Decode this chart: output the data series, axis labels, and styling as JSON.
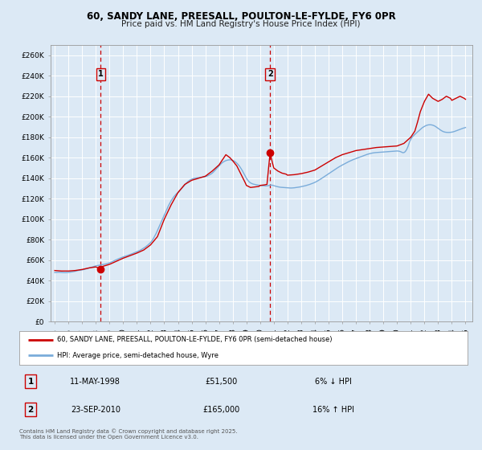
{
  "title_line1": "60, SANDY LANE, PREESALL, POULTON-LE-FYLDE, FY6 0PR",
  "title_line2": "Price paid vs. HM Land Registry's House Price Index (HPI)",
  "background_color": "#dce9f5",
  "plot_bg_color": "#dce9f5",
  "grid_color": "#ffffff",
  "ylim": [
    0,
    270000
  ],
  "yticks": [
    0,
    20000,
    40000,
    60000,
    80000,
    100000,
    120000,
    140000,
    160000,
    180000,
    200000,
    220000,
    240000,
    260000
  ],
  "xlim_start": 1994.7,
  "xlim_end": 2025.5,
  "xtick_years": [
    1995,
    1996,
    1997,
    1998,
    1999,
    2000,
    2001,
    2002,
    2003,
    2004,
    2005,
    2006,
    2007,
    2008,
    2009,
    2010,
    2011,
    2012,
    2013,
    2014,
    2015,
    2016,
    2017,
    2018,
    2019,
    2020,
    2021,
    2022,
    2023,
    2024,
    2025
  ],
  "property_color": "#cc0000",
  "hpi_color": "#7aacda",
  "sale1_x": 1998.36,
  "sale1_y": 51500,
  "sale1_label": "1",
  "sale1_date": "11-MAY-1998",
  "sale1_price": "£51,500",
  "sale1_hpi": "6% ↓ HPI",
  "sale2_x": 2010.73,
  "sale2_y": 165000,
  "sale2_label": "2",
  "sale2_date": "23-SEP-2010",
  "sale2_price": "£165,000",
  "sale2_hpi": "16% ↑ HPI",
  "vline_color": "#cc0000",
  "legend_label_property": "60, SANDY LANE, PREESALL, POULTON-LE-FYLDE, FY6 0PR (semi-detached house)",
  "legend_label_hpi": "HPI: Average price, semi-detached house, Wyre",
  "footer_text": "Contains HM Land Registry data © Crown copyright and database right 2025.\nThis data is licensed under the Open Government Licence v3.0.",
  "hpi_data_years": [
    1995.0,
    1995.1,
    1995.2,
    1995.3,
    1995.4,
    1995.5,
    1995.6,
    1995.7,
    1995.8,
    1995.9,
    1996.0,
    1996.1,
    1996.2,
    1996.3,
    1996.4,
    1996.5,
    1996.6,
    1996.7,
    1996.8,
    1996.9,
    1997.0,
    1997.1,
    1997.2,
    1997.3,
    1997.4,
    1997.5,
    1997.6,
    1997.7,
    1997.8,
    1997.9,
    1998.0,
    1998.1,
    1998.2,
    1998.3,
    1998.4,
    1998.5,
    1998.6,
    1998.7,
    1998.8,
    1998.9,
    1999.0,
    1999.1,
    1999.2,
    1999.3,
    1999.4,
    1999.5,
    1999.6,
    1999.7,
    1999.8,
    1999.9,
    2000.0,
    2000.1,
    2000.2,
    2000.3,
    2000.4,
    2000.5,
    2000.6,
    2000.7,
    2000.8,
    2000.9,
    2001.0,
    2001.1,
    2001.2,
    2001.3,
    2001.4,
    2001.5,
    2001.6,
    2001.7,
    2001.8,
    2001.9,
    2002.0,
    2002.1,
    2002.2,
    2002.3,
    2002.4,
    2002.5,
    2002.6,
    2002.7,
    2002.8,
    2002.9,
    2003.0,
    2003.1,
    2003.2,
    2003.3,
    2003.4,
    2003.5,
    2003.6,
    2003.7,
    2003.8,
    2003.9,
    2004.0,
    2004.1,
    2004.2,
    2004.3,
    2004.4,
    2004.5,
    2004.6,
    2004.7,
    2004.8,
    2004.9,
    2005.0,
    2005.1,
    2005.2,
    2005.3,
    2005.4,
    2005.5,
    2005.6,
    2005.7,
    2005.8,
    2005.9,
    2006.0,
    2006.1,
    2006.2,
    2006.3,
    2006.4,
    2006.5,
    2006.6,
    2006.7,
    2006.8,
    2006.9,
    2007.0,
    2007.1,
    2007.2,
    2007.3,
    2007.4,
    2007.5,
    2007.6,
    2007.7,
    2007.8,
    2007.9,
    2008.0,
    2008.1,
    2008.2,
    2008.3,
    2008.4,
    2008.5,
    2008.6,
    2008.7,
    2008.8,
    2008.9,
    2009.0,
    2009.1,
    2009.2,
    2009.3,
    2009.4,
    2009.5,
    2009.6,
    2009.7,
    2009.8,
    2009.9,
    2010.0,
    2010.1,
    2010.2,
    2010.3,
    2010.4,
    2010.5,
    2010.6,
    2010.7,
    2010.8,
    2010.9,
    2011.0,
    2011.1,
    2011.2,
    2011.3,
    2011.4,
    2011.5,
    2011.6,
    2011.7,
    2011.8,
    2011.9,
    2012.0,
    2012.1,
    2012.2,
    2012.3,
    2012.4,
    2012.5,
    2012.6,
    2012.7,
    2012.8,
    2012.9,
    2013.0,
    2013.1,
    2013.2,
    2013.3,
    2013.4,
    2013.5,
    2013.6,
    2013.7,
    2013.8,
    2013.9,
    2014.0,
    2014.1,
    2014.2,
    2014.3,
    2014.4,
    2014.5,
    2014.6,
    2014.7,
    2014.8,
    2014.9,
    2015.0,
    2015.1,
    2015.2,
    2015.3,
    2015.4,
    2015.5,
    2015.6,
    2015.7,
    2015.8,
    2015.9,
    2016.0,
    2016.1,
    2016.2,
    2016.3,
    2016.4,
    2016.5,
    2016.6,
    2016.7,
    2016.8,
    2016.9,
    2017.0,
    2017.1,
    2017.2,
    2017.3,
    2017.4,
    2017.5,
    2017.6,
    2017.7,
    2017.8,
    2017.9,
    2018.0,
    2018.1,
    2018.2,
    2018.3,
    2018.4,
    2018.5,
    2018.6,
    2018.7,
    2018.8,
    2018.9,
    2019.0,
    2019.1,
    2019.2,
    2019.3,
    2019.4,
    2019.5,
    2019.6,
    2019.7,
    2019.8,
    2019.9,
    2020.0,
    2020.1,
    2020.2,
    2020.3,
    2020.4,
    2020.5,
    2020.6,
    2020.7,
    2020.8,
    2020.9,
    2021.0,
    2021.1,
    2021.2,
    2021.3,
    2021.4,
    2021.5,
    2021.6,
    2021.7,
    2021.8,
    2021.9,
    2022.0,
    2022.1,
    2022.2,
    2022.3,
    2022.4,
    2022.5,
    2022.6,
    2022.7,
    2022.8,
    2022.9,
    2023.0,
    2023.1,
    2023.2,
    2023.3,
    2023.4,
    2023.5,
    2023.6,
    2023.7,
    2023.8,
    2023.9,
    2024.0,
    2024.1,
    2024.2,
    2024.3,
    2024.4,
    2024.5,
    2024.6,
    2024.7,
    2024.8,
    2024.9,
    2025.0
  ],
  "hpi_data_values": [
    48000,
    48100,
    48200,
    48300,
    48200,
    48100,
    48000,
    47900,
    47900,
    48000,
    48100,
    48300,
    48500,
    48700,
    49000,
    49300,
    49600,
    50000,
    50200,
    50400,
    50600,
    50900,
    51200,
    51600,
    52000,
    52400,
    52800,
    53200,
    53700,
    54100,
    54500,
    54800,
    55000,
    55200,
    55500,
    55800,
    56000,
    56300,
    56600,
    57000,
    57500,
    58000,
    58600,
    59200,
    59900,
    60500,
    61100,
    61700,
    62200,
    62700,
    63200,
    63700,
    64100,
    64600,
    65100,
    65600,
    66100,
    66600,
    67200,
    67800,
    68300,
    68900,
    69500,
    70200,
    71000,
    71800,
    72700,
    73700,
    74800,
    76000,
    77300,
    79000,
    81000,
    83500,
    86000,
    89000,
    92000,
    95000,
    98000,
    101000,
    104000,
    107000,
    110000,
    113000,
    115500,
    118000,
    120000,
    122000,
    123500,
    125000,
    126000,
    127500,
    129000,
    130500,
    132000,
    133500,
    135000,
    136500,
    137500,
    138500,
    139000,
    139500,
    140000,
    140200,
    140400,
    140600,
    140800,
    141000,
    141200,
    141400,
    141600,
    142000,
    142600,
    143300,
    144000,
    145000,
    146200,
    147600,
    149100,
    150600,
    152000,
    153500,
    154800,
    155800,
    156600,
    157200,
    157600,
    157900,
    158000,
    157800,
    157400,
    156800,
    155900,
    154700,
    153300,
    151600,
    149600,
    147400,
    145000,
    142500,
    140000,
    138000,
    136500,
    135500,
    134800,
    134300,
    134000,
    133700,
    133500,
    133200,
    133000,
    132800,
    132700,
    132600,
    132500,
    132600,
    132800,
    133100,
    133400,
    133200,
    132800,
    132400,
    132000,
    131700,
    131400,
    131200,
    131100,
    131000,
    130900,
    130800,
    130700,
    130600,
    130500,
    130500,
    130600,
    130700,
    130900,
    131100,
    131300,
    131500,
    131800,
    132100,
    132400,
    132700,
    133100,
    133500,
    133900,
    134400,
    134900,
    135400,
    136000,
    136700,
    137400,
    138200,
    139000,
    139900,
    140800,
    141700,
    142600,
    143500,
    144400,
    145300,
    146200,
    147100,
    148000,
    148900,
    149800,
    150600,
    151400,
    152200,
    152900,
    153600,
    154300,
    155000,
    155700,
    156400,
    157000,
    157600,
    158200,
    158700,
    159200,
    159700,
    160200,
    160700,
    161200,
    161700,
    162200,
    162700,
    163200,
    163600,
    164000,
    164300,
    164600,
    164800,
    165000,
    165100,
    165200,
    165300,
    165400,
    165500,
    165600,
    165700,
    165800,
    165900,
    166000,
    166100,
    166200,
    166300,
    166400,
    166500,
    166600,
    166500,
    166200,
    165700,
    165000,
    165000,
    166000,
    168000,
    171000,
    175000,
    178000,
    180000,
    181500,
    182800,
    184000,
    185200,
    186500,
    187700,
    188800,
    189800,
    190600,
    191300,
    191800,
    192100,
    192200,
    192100,
    191800,
    191300,
    190600,
    189700,
    188700,
    187700,
    186800,
    186000,
    185400,
    185000,
    184800,
    184700,
    184700,
    184800,
    185000,
    185300,
    185700,
    186200,
    186700,
    187200,
    187700,
    188200,
    188700,
    189100,
    189500
  ],
  "prop_data_years": [
    1995.0,
    1995.5,
    1996.0,
    1996.5,
    1997.0,
    1997.5,
    1998.0,
    1998.36,
    1998.5,
    1999.0,
    1999.5,
    2000.0,
    2000.5,
    2001.0,
    2001.5,
    2002.0,
    2002.5,
    2003.0,
    2003.5,
    2004.0,
    2004.5,
    2005.0,
    2005.5,
    2006.0,
    2006.5,
    2007.0,
    2007.2,
    2007.5,
    2007.8,
    2008.0,
    2008.3,
    2008.6,
    2008.9,
    2009.0,
    2009.3,
    2009.6,
    2009.9,
    2010.0,
    2010.3,
    2010.5,
    2010.73,
    2010.9,
    2011.0,
    2011.3,
    2011.6,
    2011.9,
    2012.0,
    2012.5,
    2013.0,
    2013.5,
    2014.0,
    2014.5,
    2015.0,
    2015.5,
    2016.0,
    2016.5,
    2017.0,
    2017.5,
    2018.0,
    2018.5,
    2019.0,
    2019.5,
    2020.0,
    2020.5,
    2021.0,
    2021.3,
    2021.5,
    2021.7,
    2022.0,
    2022.3,
    2022.6,
    2023.0,
    2023.3,
    2023.6,
    2023.9,
    2024.0,
    2024.3,
    2024.6,
    2024.9,
    2025.0
  ],
  "prop_data_values": [
    50000,
    49500,
    49500,
    50000,
    51000,
    52500,
    53500,
    51500,
    54000,
    56000,
    59000,
    62000,
    64500,
    67000,
    70000,
    75000,
    83000,
    100000,
    114000,
    126000,
    134000,
    138000,
    140000,
    142000,
    147000,
    153000,
    157000,
    163000,
    160000,
    157000,
    152000,
    144000,
    136000,
    133000,
    131000,
    131500,
    132000,
    133000,
    133500,
    134000,
    165000,
    155000,
    150000,
    147000,
    145000,
    144000,
    143000,
    143500,
    144500,
    146000,
    148000,
    152000,
    156000,
    160000,
    163000,
    165000,
    167000,
    168000,
    169000,
    170000,
    170500,
    171000,
    171500,
    174000,
    180000,
    186000,
    195000,
    205000,
    215000,
    222000,
    218000,
    215000,
    217000,
    220000,
    218000,
    216000,
    218000,
    220000,
    218000,
    217000
  ]
}
